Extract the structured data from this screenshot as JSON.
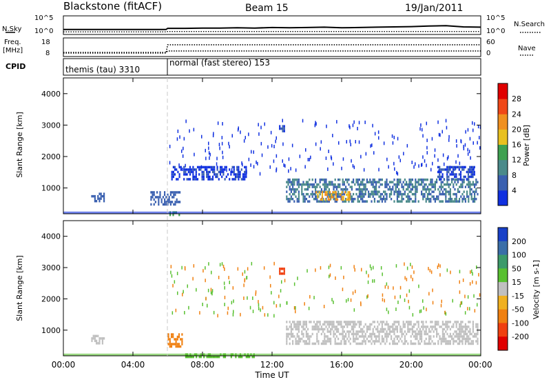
{
  "header": {
    "title": "Blackstone (fitACF)",
    "beam": "Beam 15",
    "date": "19/Jan/2011"
  },
  "colors": {
    "frame": "#000000",
    "background": "#ffffff",
    "marker_line": "#c8c8c8"
  },
  "chart_data": [
    {
      "type": "line",
      "panel": "nsky-nsearch",
      "ylabel_left": "N.Sky",
      "ylabel_right": "N.Search",
      "yticks_left": [
        "10^5",
        "10^0"
      ],
      "yticks_right": [
        "10^5",
        "10^0"
      ],
      "x_range_hours": [
        0,
        24
      ],
      "series": [
        {
          "name": "N.Sky",
          "style": "solid",
          "x": [
            0,
            1,
            2,
            3,
            4,
            5,
            5.9,
            6,
            7,
            8,
            9,
            10,
            11,
            12,
            13,
            14,
            15,
            16,
            17,
            18,
            19,
            20,
            21,
            22,
            23,
            24
          ],
          "y": [
            1.0,
            1.0,
            1.0,
            1.0,
            1.0,
            1.0,
            1.0,
            1.4,
            1.4,
            1.5,
            1.5,
            1.6,
            1.5,
            1.7,
            1.6,
            1.7,
            1.8,
            1.6,
            1.7,
            1.8,
            1.9,
            2.0,
            2.2,
            2.3,
            1.9,
            1.8
          ]
        },
        {
          "name": "N.Search",
          "style": "dotted",
          "x": [
            0,
            2,
            4,
            5.9,
            6,
            8,
            10,
            12,
            14,
            16,
            18,
            20,
            22,
            24
          ],
          "y": [
            0.2,
            0.2,
            0.2,
            0.2,
            0.3,
            0.3,
            0.3,
            0.3,
            0.3,
            0.3,
            0.3,
            0.3,
            0.3,
            0.3
          ]
        }
      ]
    },
    {
      "type": "line",
      "panel": "freq-nave",
      "ylabel_left": "Freq.",
      "ylabel_left_unit": "[MHz]",
      "ylabel_right": "Nave",
      "yticks_left": [
        "18",
        "8"
      ],
      "yticks_right": [
        "60",
        "0"
      ],
      "x_range_hours": [
        0,
        24
      ],
      "series": [
        {
          "name": "Freq.",
          "style": "dotted",
          "x": [
            0,
            5.9,
            6,
            24
          ],
          "y": [
            10.2,
            10.2,
            11.0,
            11.0
          ]
        },
        {
          "name": "Nave",
          "style": "dotted",
          "x": [
            0,
            5.9,
            6,
            24
          ],
          "y": [
            11,
            11,
            38,
            38
          ]
        }
      ]
    },
    {
      "type": "table",
      "panel": "cpid",
      "label": "CPID",
      "segments": [
        {
          "start_hour": 0,
          "end_hour": 6,
          "text": "themis (tau) 3310"
        },
        {
          "start_hour": 6,
          "end_hour": 24,
          "text": "normal (fast stereo) 153"
        }
      ]
    },
    {
      "type": "heatmap",
      "panel": "power",
      "ylabel": "Slant Range [km]",
      "ylim": [
        180,
        4500
      ],
      "yticks": [
        "1000",
        "2000",
        "3000",
        "4000"
      ],
      "xlim": [
        0,
        24
      ],
      "colorbar": {
        "label": "Power [dB]",
        "ticks": [
          "4",
          "8",
          "12",
          "16",
          "20",
          "24",
          "28"
        ],
        "range": [
          0,
          32
        ],
        "colors": [
          "#1030e0",
          "#3a60b0",
          "#4a8a8a",
          "#3ea050",
          "#e8c020",
          "#f09020",
          "#f04818",
          "#e00000"
        ]
      },
      "regions": [
        {
          "t0": 1.6,
          "t1": 2.3,
          "r0": 550,
          "r1": 850,
          "value": 6
        },
        {
          "t0": 5.0,
          "t1": 6.7,
          "r0": 450,
          "r1": 900,
          "value": 6
        },
        {
          "t0": 6.1,
          "t1": 6.7,
          "r0": 180,
          "r1": 260,
          "value": 14
        },
        {
          "t0": 6.2,
          "t1": 10.5,
          "r0": 1300,
          "r1": 1700,
          "value": 3
        },
        {
          "t0": 12.4,
          "t1": 12.7,
          "r0": 2800,
          "r1": 3000,
          "value": 4
        },
        {
          "t0": 12.8,
          "t1": 23.8,
          "r0": 600,
          "r1": 1300,
          "value": 8
        },
        {
          "t0": 14.5,
          "t1": 16.5,
          "r0": 620,
          "r1": 900,
          "value": 20
        },
        {
          "t0": 21.5,
          "t1": 23.6,
          "r0": 1300,
          "r1": 1700,
          "value": 4
        }
      ]
    },
    {
      "type": "heatmap",
      "panel": "velocity",
      "ylabel": "Slant Range [km]",
      "ylim": [
        180,
        4500
      ],
      "yticks": [
        "1000",
        "2000",
        "3000",
        "4000"
      ],
      "xlim": [
        0,
        24
      ],
      "xticks": [
        "00:00",
        "04:00",
        "08:00",
        "12:00",
        "16:00",
        "20:00",
        "00:00"
      ],
      "xlabel": "Time UT",
      "colorbar": {
        "label": "Velocity [m s-1]",
        "ticks": [
          "200",
          "100",
          "50",
          "15",
          "-15",
          "-50",
          "-100",
          "-200"
        ],
        "colors": [
          "#1840c8",
          "#3a6ea8",
          "#3c9a6a",
          "#58c030",
          "#c0c0c0",
          "#f0b020",
          "#f08010",
          "#f04010",
          "#e00000"
        ]
      },
      "regions": [
        {
          "t0": 1.6,
          "t1": 2.3,
          "r0": 550,
          "r1": 850,
          "value": 0
        },
        {
          "t0": 6.0,
          "t1": 6.8,
          "r0": 450,
          "r1": 900,
          "value": -60
        },
        {
          "t0": 12.4,
          "t1": 12.7,
          "r0": 2800,
          "r1": 3000,
          "value": -150
        },
        {
          "t0": 12.8,
          "t1": 23.8,
          "r0": 600,
          "r1": 1300,
          "value": 0
        },
        {
          "t0": 7.0,
          "t1": 11.0,
          "r0": 180,
          "r1": 260,
          "value": 30
        }
      ]
    }
  ]
}
